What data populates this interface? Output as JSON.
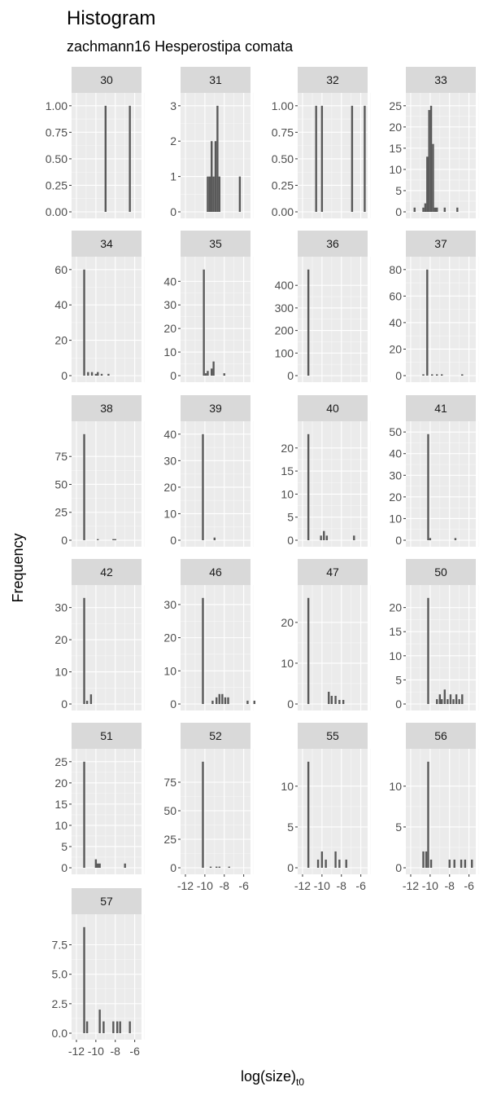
{
  "chart_data": {
    "type": "histogram-facets",
    "title": "Histogram",
    "subtitle": "zachmann16 Hesperostipa comata",
    "xlabel": "log(size)",
    "xlabel_sub": "t0",
    "ylabel": "Frequency",
    "xlim": [
      -12.5,
      -5.3
    ],
    "x_ticks": [
      -12,
      -10,
      -8,
      -6
    ],
    "x_tick_labels": [
      "-12",
      "-10",
      "-8",
      "-6"
    ],
    "bar_color": "#595959",
    "panel_bg": "#ebebeb",
    "strip_bg": "#d9d9d9",
    "panels": [
      {
        "label": "30",
        "ymax": 1.0,
        "yticks": [
          0,
          0.25,
          0.5,
          0.75,
          1
        ],
        "yticklabels": [
          "0.00",
          "0.25",
          "0.50",
          "0.75",
          "1.00"
        ],
        "bars": [
          {
            "x": -9.0,
            "y": 1
          },
          {
            "x": -6.5,
            "y": 1
          }
        ]
      },
      {
        "label": "31",
        "ymax": 3,
        "yticks": [
          0,
          1,
          2,
          3
        ],
        "yticklabels": [
          "0",
          "1",
          "2",
          "3"
        ],
        "bars": [
          {
            "x": -9.7,
            "y": 1
          },
          {
            "x": -9.5,
            "y": 1
          },
          {
            "x": -9.3,
            "y": 2
          },
          {
            "x": -9.1,
            "y": 1
          },
          {
            "x": -8.9,
            "y": 2
          },
          {
            "x": -8.7,
            "y": 3
          },
          {
            "x": -8.5,
            "y": 1
          },
          {
            "x": -6.4,
            "y": 1
          }
        ]
      },
      {
        "label": "32",
        "ymax": 1.0,
        "yticks": [
          0,
          0.25,
          0.5,
          0.75,
          1
        ],
        "yticklabels": [
          "0.00",
          "0.25",
          "0.50",
          "0.75",
          "1.00"
        ],
        "bars": [
          {
            "x": -10.6,
            "y": 1
          },
          {
            "x": -10.0,
            "y": 1
          },
          {
            "x": -6.9,
            "y": 1
          },
          {
            "x": -5.6,
            "y": 1
          }
        ]
      },
      {
        "label": "33",
        "ymax": 25,
        "yticks": [
          0,
          5,
          10,
          15,
          20,
          25
        ],
        "yticklabels": [
          "0",
          "5",
          "10",
          "15",
          "20",
          "25"
        ],
        "bars": [
          {
            "x": -11.6,
            "y": 1
          },
          {
            "x": -10.7,
            "y": 1
          },
          {
            "x": -10.5,
            "y": 2
          },
          {
            "x": -10.3,
            "y": 13
          },
          {
            "x": -10.1,
            "y": 24
          },
          {
            "x": -9.9,
            "y": 25
          },
          {
            "x": -9.7,
            "y": 16
          },
          {
            "x": -9.5,
            "y": 1
          },
          {
            "x": -9.3,
            "y": 1
          },
          {
            "x": -8.5,
            "y": 1
          },
          {
            "x": -7.2,
            "y": 1
          }
        ]
      },
      {
        "label": "34",
        "ymax": 60,
        "yticks": [
          0,
          20,
          40,
          60
        ],
        "yticklabels": [
          "0",
          "20",
          "40",
          "60"
        ],
        "bars": [
          {
            "x": -11.2,
            "y": 60
          },
          {
            "x": -10.8,
            "y": 2
          },
          {
            "x": -10.4,
            "y": 2
          },
          {
            "x": -10.0,
            "y": 1
          },
          {
            "x": -9.8,
            "y": 2
          },
          {
            "x": -9.4,
            "y": 1
          },
          {
            "x": -8.7,
            "y": 1
          }
        ]
      },
      {
        "label": "35",
        "ymax": 45,
        "yticks": [
          0,
          10,
          20,
          30,
          40
        ],
        "yticklabels": [
          "0",
          "10",
          "20",
          "30",
          "40"
        ],
        "bars": [
          {
            "x": -10.1,
            "y": 45
          },
          {
            "x": -9.9,
            "y": 1
          },
          {
            "x": -9.7,
            "y": 2
          },
          {
            "x": -9.3,
            "y": 3
          },
          {
            "x": -9.1,
            "y": 6
          },
          {
            "x": -8.0,
            "y": 1
          }
        ]
      },
      {
        "label": "36",
        "ymax": 470,
        "yticks": [
          0,
          100,
          200,
          300,
          400
        ],
        "yticklabels": [
          "0",
          "100",
          "200",
          "300",
          "400"
        ],
        "bars": [
          {
            "x": -11.4,
            "y": 470
          }
        ]
      },
      {
        "label": "37",
        "ymax": 80,
        "yticks": [
          0,
          20,
          40,
          60,
          80
        ],
        "yticklabels": [
          "0",
          "20",
          "40",
          "60",
          "80"
        ],
        "bars": [
          {
            "x": -10.7,
            "y": 1
          },
          {
            "x": -10.3,
            "y": 80
          },
          {
            "x": -9.8,
            "y": 1
          },
          {
            "x": -9.3,
            "y": 1
          },
          {
            "x": -8.8,
            "y": 1
          },
          {
            "x": -6.7,
            "y": 1
          }
        ]
      },
      {
        "label": "38",
        "ymax": 95,
        "yticks": [
          0,
          25,
          50,
          75
        ],
        "yticklabels": [
          "0",
          "25",
          "50",
          "75"
        ],
        "bars": [
          {
            "x": -11.2,
            "y": 95
          },
          {
            "x": -9.8,
            "y": 1
          },
          {
            "x": -8.2,
            "y": 1
          },
          {
            "x": -8.0,
            "y": 1
          }
        ]
      },
      {
        "label": "39",
        "ymax": 40,
        "yticks": [
          0,
          10,
          20,
          30,
          40
        ],
        "yticklabels": [
          "0",
          "10",
          "20",
          "30",
          "40"
        ],
        "bars": [
          {
            "x": -10.2,
            "y": 40
          },
          {
            "x": -9.0,
            "y": 1
          }
        ]
      },
      {
        "label": "40",
        "ymax": 23,
        "yticks": [
          0,
          5,
          10,
          15,
          20
        ],
        "yticklabels": [
          "0",
          "5",
          "10",
          "15",
          "20"
        ],
        "bars": [
          {
            "x": -11.4,
            "y": 23
          },
          {
            "x": -10.1,
            "y": 1
          },
          {
            "x": -9.8,
            "y": 2
          },
          {
            "x": -9.5,
            "y": 1
          },
          {
            "x": -6.7,
            "y": 1
          }
        ]
      },
      {
        "label": "41",
        "ymax": 49,
        "yticks": [
          0,
          10,
          20,
          30,
          40,
          50
        ],
        "yticklabels": [
          "0",
          "10",
          "20",
          "30",
          "40",
          "50"
        ],
        "bars": [
          {
            "x": -10.2,
            "y": 49
          },
          {
            "x": -10.0,
            "y": 1
          },
          {
            "x": -7.4,
            "y": 1
          }
        ]
      },
      {
        "label": "42",
        "ymax": 33,
        "yticks": [
          0,
          10,
          20,
          30
        ],
        "yticklabels": [
          "0",
          "10",
          "20",
          "30"
        ],
        "bars": [
          {
            "x": -11.2,
            "y": 33
          },
          {
            "x": -10.9,
            "y": 1
          },
          {
            "x": -10.5,
            "y": 3
          }
        ]
      },
      {
        "label": "46",
        "ymax": 32,
        "yticks": [
          0,
          10,
          20,
          30
        ],
        "yticklabels": [
          "0",
          "10",
          "20",
          "30"
        ],
        "bars": [
          {
            "x": -10.2,
            "y": 32
          },
          {
            "x": -9.2,
            "y": 1
          },
          {
            "x": -8.8,
            "y": 2
          },
          {
            "x": -8.5,
            "y": 3
          },
          {
            "x": -8.2,
            "y": 3
          },
          {
            "x": -7.9,
            "y": 2
          },
          {
            "x": -7.6,
            "y": 2
          },
          {
            "x": -5.6,
            "y": 1
          },
          {
            "x": -4.9,
            "y": 1
          }
        ]
      },
      {
        "label": "47",
        "ymax": 26,
        "yticks": [
          0,
          10,
          20
        ],
        "yticklabels": [
          "0",
          "10",
          "20"
        ],
        "bars": [
          {
            "x": -11.4,
            "y": 26
          },
          {
            "x": -9.3,
            "y": 3
          },
          {
            "x": -9.0,
            "y": 2
          },
          {
            "x": -8.6,
            "y": 2
          },
          {
            "x": -8.2,
            "y": 1
          },
          {
            "x": -7.8,
            "y": 1
          }
        ]
      },
      {
        "label": "50",
        "ymax": 22,
        "yticks": [
          0,
          5,
          10,
          15,
          20
        ],
        "yticklabels": [
          "0",
          "5",
          "10",
          "15",
          "20"
        ],
        "bars": [
          {
            "x": -10.2,
            "y": 22
          },
          {
            "x": -9.3,
            "y": 1
          },
          {
            "x": -9.0,
            "y": 2
          },
          {
            "x": -8.8,
            "y": 1
          },
          {
            "x": -8.5,
            "y": 3
          },
          {
            "x": -8.2,
            "y": 1
          },
          {
            "x": -7.9,
            "y": 2
          },
          {
            "x": -7.6,
            "y": 1
          },
          {
            "x": -7.3,
            "y": 2
          },
          {
            "x": -7.0,
            "y": 1
          },
          {
            "x": -6.7,
            "y": 2
          }
        ]
      },
      {
        "label": "51",
        "ymax": 25,
        "yticks": [
          0,
          5,
          10,
          15,
          20,
          25
        ],
        "yticklabels": [
          "0",
          "5",
          "10",
          "15",
          "20",
          "25"
        ],
        "bars": [
          {
            "x": -11.2,
            "y": 25
          },
          {
            "x": -10.0,
            "y": 2
          },
          {
            "x": -9.8,
            "y": 1
          },
          {
            "x": -9.6,
            "y": 1
          },
          {
            "x": -7.0,
            "y": 1
          }
        ]
      },
      {
        "label": "52",
        "ymax": 93,
        "yticks": [
          0,
          25,
          50,
          75
        ],
        "yticklabels": [
          "0",
          "25",
          "50",
          "75"
        ],
        "bars": [
          {
            "x": -10.2,
            "y": 93
          },
          {
            "x": -9.4,
            "y": 1
          },
          {
            "x": -8.8,
            "y": 1
          },
          {
            "x": -8.5,
            "y": 1
          },
          {
            "x": -7.5,
            "y": 1
          }
        ]
      },
      {
        "label": "55",
        "ymax": 13,
        "yticks": [
          0,
          5,
          10
        ],
        "yticklabels": [
          "0",
          "5",
          "10"
        ],
        "bars": [
          {
            "x": -11.4,
            "y": 13
          },
          {
            "x": -10.4,
            "y": 1
          },
          {
            "x": -10.0,
            "y": 2
          },
          {
            "x": -9.6,
            "y": 1
          },
          {
            "x": -8.6,
            "y": 2
          },
          {
            "x": -8.2,
            "y": 1
          },
          {
            "x": -7.5,
            "y": 1
          }
        ]
      },
      {
        "label": "56",
        "ymax": 13,
        "yticks": [
          0,
          5,
          10
        ],
        "yticklabels": [
          "0",
          "5",
          "10"
        ],
        "bars": [
          {
            "x": -10.7,
            "y": 2
          },
          {
            "x": -10.4,
            "y": 2
          },
          {
            "x": -10.2,
            "y": 13
          },
          {
            "x": -9.9,
            "y": 1
          },
          {
            "x": -8.0,
            "y": 1
          },
          {
            "x": -7.5,
            "y": 1
          },
          {
            "x": -6.8,
            "y": 1
          },
          {
            "x": -6.4,
            "y": 1
          },
          {
            "x": -5.7,
            "y": 1
          }
        ]
      },
      {
        "label": "57",
        "ymax": 9,
        "yticks": [
          0,
          2.5,
          5,
          7.5
        ],
        "yticklabels": [
          "0.0",
          "2.5",
          "5.0",
          "7.5"
        ],
        "bars": [
          {
            "x": -11.2,
            "y": 9
          },
          {
            "x": -10.9,
            "y": 1
          },
          {
            "x": -9.6,
            "y": 2
          },
          {
            "x": -9.2,
            "y": 1
          },
          {
            "x": -8.2,
            "y": 1
          },
          {
            "x": -7.8,
            "y": 1
          },
          {
            "x": -7.5,
            "y": 1
          },
          {
            "x": -6.5,
            "y": 1
          }
        ]
      }
    ]
  }
}
